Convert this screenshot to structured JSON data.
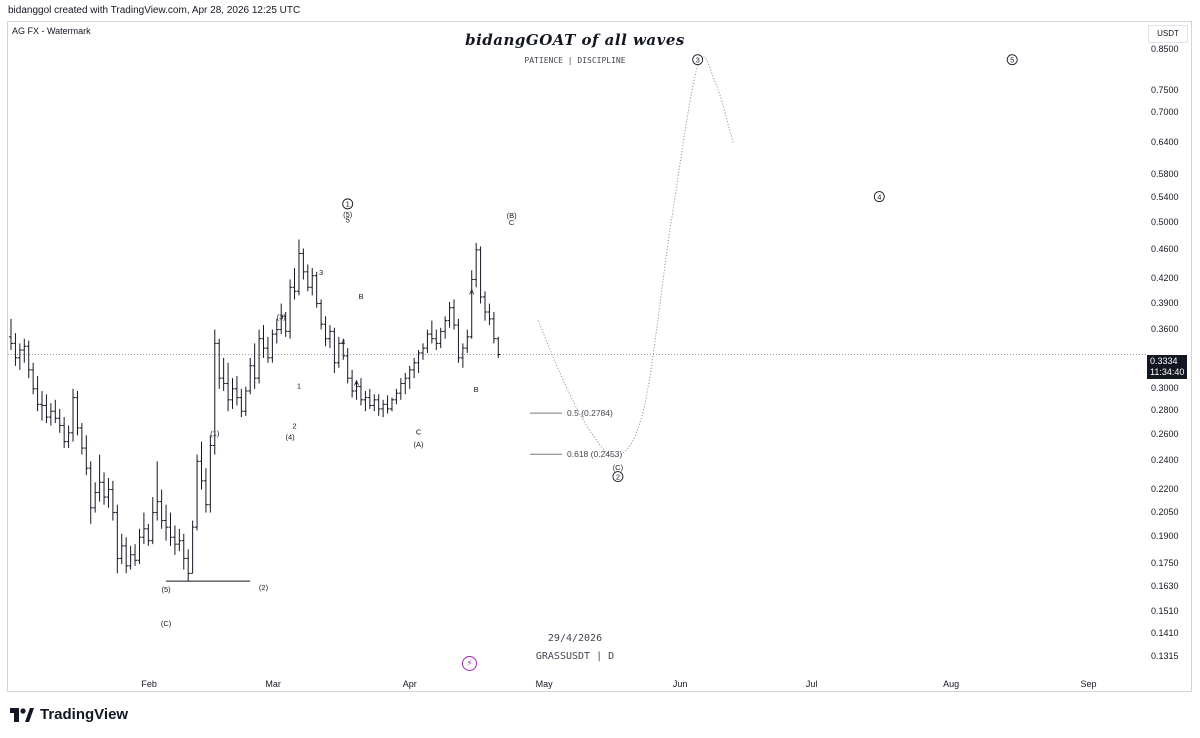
{
  "header": {
    "credit": "bidanggol created with TradingView.com, Apr 28, 2026 12:25 UTC",
    "symbol_label": "AG FX - Watermark",
    "headline": "bidangGOAT of all waves",
    "subline": "PATIENCE | DISCIPLINE"
  },
  "watermark": {
    "date": "29/4/2026",
    "pair": "GRASSUSDT | D"
  },
  "axis": {
    "currency": "USDT",
    "price_ticks": [
      "0.8500",
      "0.7500",
      "0.7000",
      "0.6400",
      "0.5800",
      "0.5400",
      "0.5000",
      "0.4600",
      "0.4200",
      "0.3900",
      "0.3600",
      "0.3000",
      "0.2800",
      "0.2600",
      "0.2400",
      "0.2200",
      "0.2050",
      "0.1900",
      "0.1750",
      "0.1630",
      "0.1510",
      "0.1410",
      "0.1315"
    ],
    "months": [
      "Feb",
      "Mar",
      "Apr",
      "May",
      "Jun",
      "Jul",
      "Aug",
      "Sep"
    ]
  },
  "last_price": {
    "value": "0.3334",
    "countdown": "11:34:40"
  },
  "fib_levels": [
    {
      "label": "0.5 (0.2784)",
      "price": 0.2784
    },
    {
      "label": "0.618 (0.2453)",
      "price": 0.2453
    }
  ],
  "wave_labels": [
    {
      "text": "(5)",
      "date": "2026-02-05",
      "price": 0.162
    },
    {
      "text": "(C)",
      "date": "2026-02-05",
      "price": 0.146
    },
    {
      "text": "(1)",
      "date": "2026-02-16",
      "price": 0.262
    },
    {
      "text": "(2)",
      "date": "2026-02-27",
      "price": 0.163
    },
    {
      "text": "(3)",
      "date": "2026-03-03",
      "price": 0.375
    },
    {
      "text": "(4)",
      "date": "2026-03-05",
      "price": 0.259
    },
    {
      "text": "1",
      "date": "2026-03-07",
      "price": 0.303
    },
    {
      "text": "2",
      "date": "2026-03-06",
      "price": 0.268
    },
    {
      "text": "3",
      "date": "2026-03-12",
      "price": 0.43
    },
    {
      "text": "4",
      "date": "2026-03-17",
      "price": 0.347
    },
    {
      "text": "5",
      "date": "2026-03-18",
      "price": 0.505
    },
    {
      "text": "(5)",
      "date": "2026-03-18",
      "price": 0.514
    },
    {
      "text": "B",
      "date": "2026-03-21",
      "price": 0.399
    },
    {
      "text": "A",
      "date": "2026-03-20",
      "price": 0.306
    },
    {
      "text": "C",
      "date": "2026-04-03",
      "price": 0.263
    },
    {
      "text": "(A)",
      "date": "2026-04-03",
      "price": 0.253
    },
    {
      "text": "A",
      "date": "2026-04-15",
      "price": 0.405
    },
    {
      "text": "B",
      "date": "2026-04-16",
      "price": 0.3
    },
    {
      "text": "(B)",
      "date": "2026-04-24",
      "price": 0.512
    },
    {
      "text": "C",
      "date": "2026-04-24",
      "price": 0.501
    },
    {
      "text": "(C)",
      "date": "2026-05-18",
      "price": 0.236
    }
  ],
  "circled_labels": [
    {
      "text": "1",
      "date": "2026-03-18",
      "price": 0.53
    },
    {
      "text": "2",
      "date": "2026-05-18",
      "price": 0.229
    },
    {
      "text": "3",
      "date": "2026-06-05",
      "price": 0.826
    },
    {
      "text": "4",
      "date": "2026-07-16",
      "price": 0.542
    },
    {
      "text": "5",
      "date": "2026-08-15",
      "price": 0.826
    }
  ],
  "chart_data": {
    "type": "ohlc",
    "symbol": "GRASSUSDT",
    "interval": "D",
    "y_scale": "log",
    "ylim": [
      0.1255,
      0.905
    ],
    "xlim": [
      "2026-01-01",
      "2026-09-30"
    ],
    "grid": false,
    "last_price": 0.3334,
    "bars": [
      [
        "2026-01-01",
        0.352,
        0.372,
        0.338,
        0.345
      ],
      [
        "2026-01-02",
        0.345,
        0.356,
        0.322,
        0.33
      ],
      [
        "2026-01-03",
        0.33,
        0.345,
        0.318,
        0.338
      ],
      [
        "2026-01-04",
        0.338,
        0.35,
        0.325,
        0.342
      ],
      [
        "2026-01-05",
        0.342,
        0.348,
        0.31,
        0.318
      ],
      [
        "2026-01-06",
        0.318,
        0.325,
        0.295,
        0.3
      ],
      [
        "2026-01-07",
        0.3,
        0.312,
        0.28,
        0.286
      ],
      [
        "2026-01-08",
        0.286,
        0.298,
        0.272,
        0.285
      ],
      [
        "2026-01-09",
        0.285,
        0.295,
        0.27,
        0.275
      ],
      [
        "2026-01-10",
        0.275,
        0.287,
        0.268,
        0.28
      ],
      [
        "2026-01-11",
        0.28,
        0.29,
        0.27,
        0.274
      ],
      [
        "2026-01-12",
        0.274,
        0.282,
        0.262,
        0.268
      ],
      [
        "2026-01-13",
        0.268,
        0.275,
        0.25,
        0.255
      ],
      [
        "2026-01-14",
        0.255,
        0.268,
        0.25,
        0.262
      ],
      [
        "2026-01-15",
        0.262,
        0.3,
        0.255,
        0.292
      ],
      [
        "2026-01-16",
        0.292,
        0.298,
        0.26,
        0.266
      ],
      [
        "2026-01-17",
        0.266,
        0.27,
        0.245,
        0.25
      ],
      [
        "2026-01-18",
        0.25,
        0.26,
        0.23,
        0.235
      ],
      [
        "2026-01-19",
        0.235,
        0.24,
        0.198,
        0.208
      ],
      [
        "2026-01-20",
        0.208,
        0.225,
        0.205,
        0.218
      ],
      [
        "2026-01-21",
        0.218,
        0.245,
        0.212,
        0.225
      ],
      [
        "2026-01-22",
        0.225,
        0.232,
        0.21,
        0.215
      ],
      [
        "2026-01-23",
        0.215,
        0.228,
        0.208,
        0.22
      ],
      [
        "2026-01-24",
        0.22,
        0.226,
        0.2,
        0.205
      ],
      [
        "2026-01-25",
        0.205,
        0.21,
        0.17,
        0.178
      ],
      [
        "2026-01-26",
        0.178,
        0.192,
        0.175,
        0.185
      ],
      [
        "2026-01-27",
        0.185,
        0.19,
        0.17,
        0.174
      ],
      [
        "2026-01-28",
        0.174,
        0.185,
        0.172,
        0.18
      ],
      [
        "2026-01-29",
        0.18,
        0.186,
        0.174,
        0.177
      ],
      [
        "2026-01-30",
        0.177,
        0.195,
        0.175,
        0.19
      ],
      [
        "2026-01-31",
        0.19,
        0.205,
        0.186,
        0.195
      ],
      [
        "2026-02-01",
        0.195,
        0.198,
        0.185,
        0.188
      ],
      [
        "2026-02-02",
        0.188,
        0.215,
        0.186,
        0.205
      ],
      [
        "2026-02-03",
        0.205,
        0.24,
        0.2,
        0.212
      ],
      [
        "2026-02-04",
        0.212,
        0.22,
        0.195,
        0.2
      ],
      [
        "2026-02-05",
        0.2,
        0.21,
        0.188,
        0.196
      ],
      [
        "2026-02-06",
        0.196,
        0.205,
        0.185,
        0.19
      ],
      [
        "2026-02-07",
        0.19,
        0.197,
        0.18,
        0.186
      ],
      [
        "2026-02-08",
        0.186,
        0.195,
        0.182,
        0.188
      ],
      [
        "2026-02-09",
        0.188,
        0.192,
        0.172,
        0.178
      ],
      [
        "2026-02-10",
        0.178,
        0.183,
        0.166,
        0.17
      ],
      [
        "2026-02-11",
        0.17,
        0.2,
        0.17,
        0.196
      ],
      [
        "2026-02-12",
        0.196,
        0.245,
        0.194,
        0.24
      ],
      [
        "2026-02-13",
        0.24,
        0.255,
        0.22,
        0.226
      ],
      [
        "2026-02-14",
        0.226,
        0.235,
        0.205,
        0.21
      ],
      [
        "2026-02-15",
        0.21,
        0.26,
        0.205,
        0.252
      ],
      [
        "2026-02-16",
        0.252,
        0.36,
        0.245,
        0.345
      ],
      [
        "2026-02-17",
        0.345,
        0.35,
        0.3,
        0.31
      ],
      [
        "2026-02-18",
        0.31,
        0.33,
        0.298,
        0.305
      ],
      [
        "2026-02-19",
        0.305,
        0.325,
        0.28,
        0.29
      ],
      [
        "2026-02-20",
        0.29,
        0.31,
        0.282,
        0.3
      ],
      [
        "2026-02-21",
        0.3,
        0.312,
        0.285,
        0.292
      ],
      [
        "2026-02-22",
        0.292,
        0.3,
        0.275,
        0.28
      ],
      [
        "2026-02-23",
        0.28,
        0.302,
        0.276,
        0.298
      ],
      [
        "2026-02-24",
        0.298,
        0.33,
        0.295,
        0.322
      ],
      [
        "2026-02-25",
        0.322,
        0.345,
        0.3,
        0.31
      ],
      [
        "2026-02-26",
        0.31,
        0.36,
        0.305,
        0.35
      ],
      [
        "2026-02-27",
        0.35,
        0.365,
        0.33,
        0.34
      ],
      [
        "2026-02-28",
        0.34,
        0.352,
        0.325,
        0.33
      ],
      [
        "2026-03-01",
        0.33,
        0.36,
        0.325,
        0.355
      ],
      [
        "2026-03-02",
        0.355,
        0.372,
        0.345,
        0.36
      ],
      [
        "2026-03-03",
        0.36,
        0.39,
        0.355,
        0.375
      ],
      [
        "2026-03-04",
        0.375,
        0.38,
        0.352,
        0.358
      ],
      [
        "2026-03-05",
        0.358,
        0.42,
        0.35,
        0.41
      ],
      [
        "2026-03-06",
        0.41,
        0.435,
        0.395,
        0.405
      ],
      [
        "2026-03-07",
        0.405,
        0.475,
        0.4,
        0.455
      ],
      [
        "2026-03-08",
        0.455,
        0.462,
        0.42,
        0.43
      ],
      [
        "2026-03-09",
        0.43,
        0.44,
        0.405,
        0.41
      ],
      [
        "2026-03-10",
        0.41,
        0.435,
        0.4,
        0.425
      ],
      [
        "2026-03-11",
        0.425,
        0.43,
        0.385,
        0.39
      ],
      [
        "2026-03-12",
        0.39,
        0.395,
        0.36,
        0.366
      ],
      [
        "2026-03-13",
        0.366,
        0.375,
        0.342,
        0.35
      ],
      [
        "2026-03-14",
        0.35,
        0.365,
        0.34,
        0.358
      ],
      [
        "2026-03-15",
        0.358,
        0.362,
        0.315,
        0.325
      ],
      [
        "2026-03-16",
        0.325,
        0.352,
        0.32,
        0.345
      ],
      [
        "2026-03-17",
        0.345,
        0.35,
        0.328,
        0.332
      ],
      [
        "2026-03-18",
        0.332,
        0.34,
        0.305,
        0.31
      ],
      [
        "2026-03-19",
        0.31,
        0.318,
        0.292,
        0.298
      ],
      [
        "2026-03-20",
        0.298,
        0.308,
        0.29,
        0.302
      ],
      [
        "2026-03-21",
        0.302,
        0.31,
        0.285,
        0.29
      ],
      [
        "2026-03-22",
        0.29,
        0.298,
        0.28,
        0.292
      ],
      [
        "2026-03-23",
        0.292,
        0.3,
        0.282,
        0.285
      ],
      [
        "2026-03-24",
        0.285,
        0.295,
        0.28,
        0.29
      ],
      [
        "2026-03-25",
        0.29,
        0.295,
        0.276,
        0.282
      ],
      [
        "2026-03-26",
        0.282,
        0.29,
        0.275,
        0.286
      ],
      [
        "2026-03-27",
        0.286,
        0.294,
        0.278,
        0.282
      ],
      [
        "2026-03-28",
        0.282,
        0.292,
        0.28,
        0.29
      ],
      [
        "2026-03-29",
        0.29,
        0.3,
        0.286,
        0.296
      ],
      [
        "2026-03-30",
        0.296,
        0.31,
        0.29,
        0.305
      ],
      [
        "2026-03-31",
        0.305,
        0.315,
        0.295,
        0.31
      ],
      [
        "2026-04-01",
        0.31,
        0.322,
        0.3,
        0.318
      ],
      [
        "2026-04-02",
        0.318,
        0.33,
        0.31,
        0.325
      ],
      [
        "2026-04-03",
        0.325,
        0.338,
        0.315,
        0.335
      ],
      [
        "2026-04-04",
        0.335,
        0.345,
        0.328,
        0.34
      ],
      [
        "2026-04-05",
        0.34,
        0.36,
        0.335,
        0.355
      ],
      [
        "2026-04-06",
        0.355,
        0.37,
        0.345,
        0.35
      ],
      [
        "2026-04-07",
        0.35,
        0.36,
        0.338,
        0.345
      ],
      [
        "2026-04-08",
        0.345,
        0.362,
        0.34,
        0.358
      ],
      [
        "2026-04-09",
        0.358,
        0.375,
        0.35,
        0.37
      ],
      [
        "2026-04-10",
        0.37,
        0.392,
        0.362,
        0.385
      ],
      [
        "2026-04-11",
        0.385,
        0.395,
        0.36,
        0.365
      ],
      [
        "2026-04-12",
        0.365,
        0.372,
        0.325,
        0.33
      ],
      [
        "2026-04-13",
        0.33,
        0.345,
        0.32,
        0.34
      ],
      [
        "2026-04-14",
        0.34,
        0.36,
        0.335,
        0.352
      ],
      [
        "2026-04-15",
        0.352,
        0.432,
        0.35,
        0.42
      ],
      [
        "2026-04-16",
        0.42,
        0.47,
        0.41,
        0.46
      ],
      [
        "2026-04-17",
        0.46,
        0.465,
        0.39,
        0.398
      ],
      [
        "2026-04-18",
        0.398,
        0.405,
        0.37,
        0.38
      ],
      [
        "2026-04-19",
        0.38,
        0.39,
        0.365,
        0.372
      ],
      [
        "2026-04-20",
        0.372,
        0.38,
        0.345,
        0.35
      ],
      [
        "2026-04-21",
        0.35,
        0.352,
        0.33,
        0.3334
      ]
    ],
    "horizontal_segment": {
      "from": "2026-02-05",
      "to": "2026-02-24",
      "price": 0.166
    },
    "projection_path": [
      {
        "date": "2026-04-30",
        "price": 0.37
      },
      {
        "date": "2026-05-06",
        "price": 0.305
      },
      {
        "date": "2026-05-12",
        "price": 0.262
      },
      {
        "date": "2026-05-18",
        "price": 0.244
      },
      {
        "date": "2026-05-24",
        "price": 0.285
      },
      {
        "date": "2026-05-30",
        "price": 0.5
      },
      {
        "date": "2026-06-05",
        "price": 0.81
      },
      {
        "date": "2026-06-09",
        "price": 0.77
      },
      {
        "date": "2026-06-13",
        "price": 0.64
      }
    ]
  }
}
